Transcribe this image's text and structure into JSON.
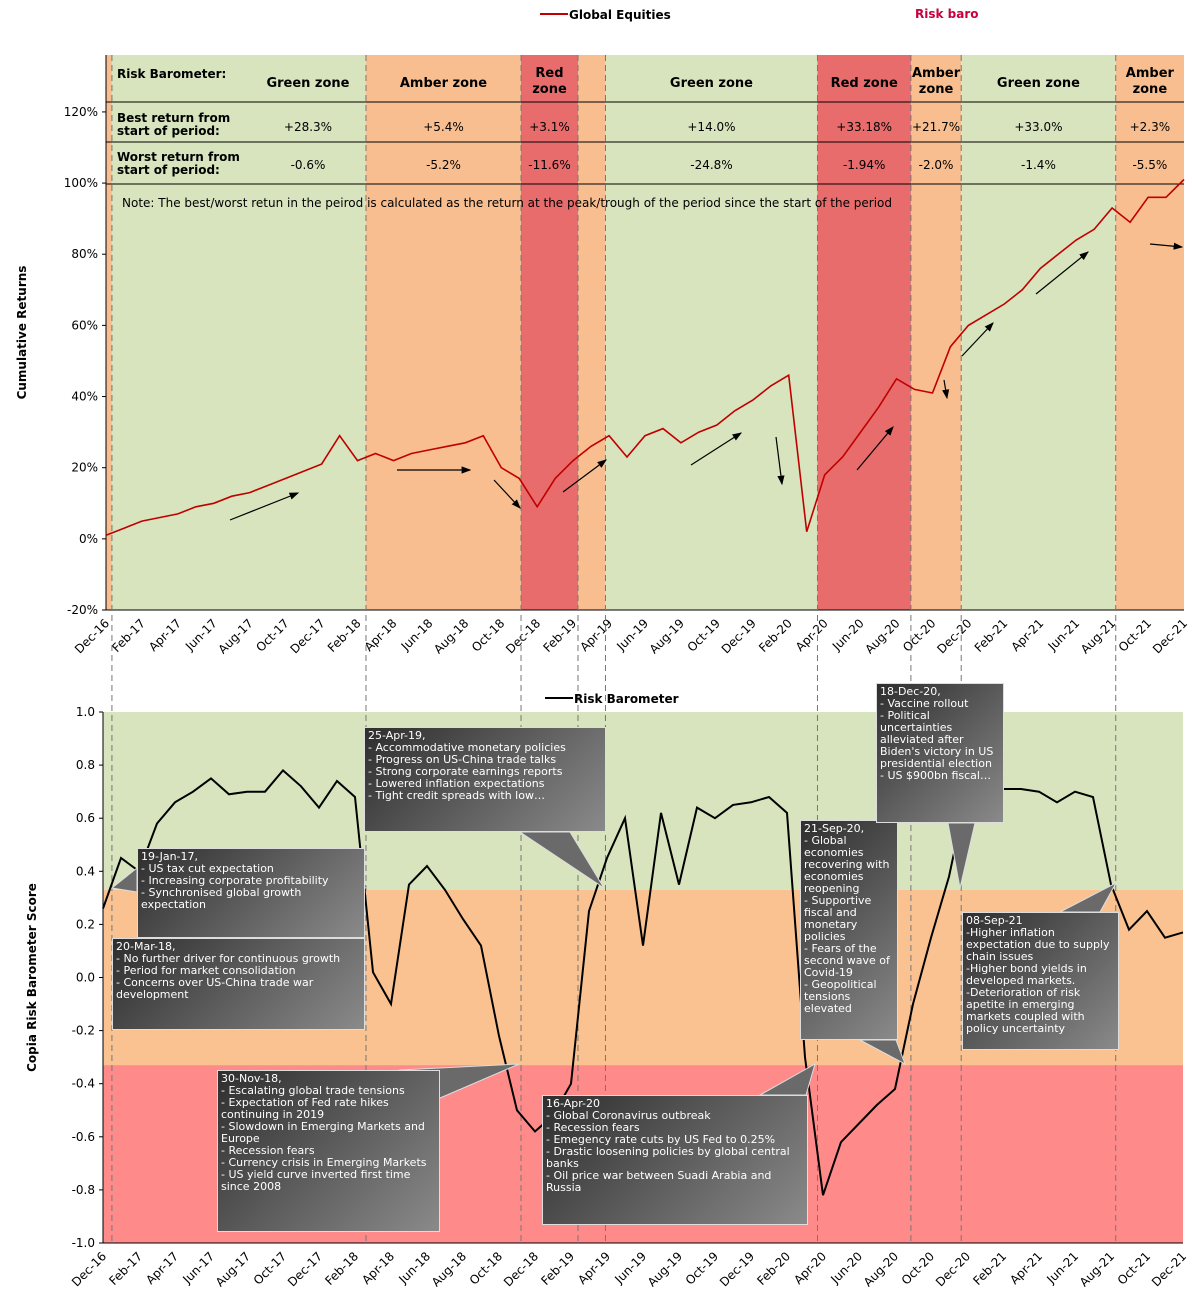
{
  "chart_data": [
    {
      "type": "line",
      "title": "Risk baro",
      "y_label": "Cumulative Returns",
      "categories": [
        "Dec-16",
        null,
        "Feb-17",
        null,
        "Apr-17",
        null,
        "Jun-17",
        null,
        "Aug-17",
        null,
        "Oct-17",
        null,
        "Dec-17",
        null,
        "Feb-18",
        null,
        "Apr-18",
        null,
        "Jun-18",
        null,
        "Aug-18",
        null,
        "Oct-18",
        null,
        "Dec-18",
        null,
        "Feb-19",
        null,
        "Apr-19",
        null,
        "Jun-19",
        null,
        "Aug-19",
        null,
        "Oct-19",
        null,
        "Dec-19",
        null,
        "Feb-20",
        null,
        "Apr-20",
        null,
        "Jun-20",
        null,
        "Aug-20",
        null,
        "Oct-20",
        null,
        "Dec-20",
        null,
        "Feb-21",
        null,
        "Apr-21",
        null,
        "Jun-21",
        null,
        "Aug-21",
        null,
        "Oct-21",
        null,
        "Dec-21"
      ],
      "series": [
        {
          "name": "Global Equities",
          "color": "#c00000",
          "values": [
            1,
            3,
            5,
            6,
            7,
            9,
            10,
            12,
            13,
            15,
            17,
            19,
            21,
            29,
            22,
            24,
            22,
            24,
            25,
            26,
            27,
            29,
            20,
            17,
            9,
            17,
            22,
            26,
            29,
            23,
            29,
            31,
            27,
            30,
            32,
            36,
            39,
            43,
            46,
            2,
            18,
            23,
            30,
            37,
            45,
            42,
            41,
            54,
            60,
            63,
            66,
            70,
            76,
            80,
            84,
            87,
            93,
            89,
            96,
            96,
            101
          ]
        }
      ],
      "ylim": [
        -20,
        136
      ],
      "yticks": [
        {
          "value": -20,
          "label": "-20%"
        },
        {
          "value": 0,
          "label": "0%"
        },
        {
          "value": 20,
          "label": "20%"
        },
        {
          "value": 40,
          "label": "40%"
        },
        {
          "value": 60,
          "label": "60%"
        },
        {
          "value": 80,
          "label": "80%"
        },
        {
          "value": 100,
          "label": "100%"
        },
        {
          "value": 120,
          "label": "120%"
        }
      ],
      "table": {
        "row_labels": [
          "Risk Barometer:",
          "Best return from start of period:",
          "Worst return from start of period:"
        ]
      },
      "zones": [
        {
          "x": [
            0,
            0.33
          ],
          "color": "#f8be8f"
        },
        {
          "x": [
            0.33,
            14.47
          ],
          "color": "#d7e4bd",
          "label": "Green zone",
          "best": "+28.3%",
          "worst": "-0.6%"
        },
        {
          "x": [
            14.47,
            23.1
          ],
          "color": "#f8be8f",
          "label": "Amber zone",
          "best": "+5.4%",
          "worst": "-5.2%"
        },
        {
          "x": [
            23.1,
            26.27
          ],
          "color": "#e86c6c",
          "label": "Red zone",
          "best": "+3.1%",
          "worst": "-11.6%"
        },
        {
          "x": [
            26.27,
            27.8
          ],
          "color": "#f8be8f"
        },
        {
          "x": [
            27.8,
            39.6
          ],
          "color": "#d7e4bd",
          "label": "Green zone",
          "best": "+14.0%",
          "worst": "-24.8%"
        },
        {
          "x": [
            39.6,
            44.8
          ],
          "color": "#e86c6c",
          "label": "Red zone",
          "best": "+33.18%",
          "worst": "-1.94%"
        },
        {
          "x": [
            44.8,
            47.6
          ],
          "color": "#f8be8f",
          "label": "Amber zone",
          "best": "+21.7%",
          "worst": "-2.0%"
        },
        {
          "x": [
            47.6,
            56.2
          ],
          "color": "#d7e4bd",
          "label": "Green zone",
          "best": "+33.0%",
          "worst": "-1.4%"
        },
        {
          "x": [
            56.2,
            60
          ],
          "color": "#f8be8f",
          "label": "Amber zone",
          "best": "+2.3%",
          "worst": "-5.5%"
        }
      ],
      "note": "Note: The best/worst retun in the peirod is calculated as the return at the peak/trough of the period since the start of the period"
    },
    {
      "type": "line",
      "y_label": "Copia Risk Barometer Score",
      "categories": [
        "Dec-16",
        null,
        "Feb-17",
        null,
        "Apr-17",
        null,
        "Jun-17",
        null,
        "Aug-17",
        null,
        "Oct-17",
        null,
        "Dec-17",
        null,
        "Feb-18",
        null,
        "Apr-18",
        null,
        "Jun-18",
        null,
        "Aug-18",
        null,
        "Oct-18",
        null,
        "Dec-18",
        null,
        "Feb-19",
        null,
        "Apr-19",
        null,
        "Jun-19",
        null,
        "Aug-19",
        null,
        "Oct-19",
        null,
        "Dec-19",
        null,
        "Feb-20",
        null,
        "Apr-20",
        null,
        "Jun-20",
        null,
        "Aug-20",
        null,
        "Oct-20",
        null,
        "Dec-20",
        null,
        "Feb-21",
        null,
        "Apr-21",
        null,
        "Jun-21",
        null,
        "Aug-21",
        null,
        "Oct-21",
        null,
        "Dec-21"
      ],
      "series": [
        {
          "name": "Risk Barometer",
          "color": "#000000",
          "values": [
            0.26,
            0.45,
            0.4,
            0.58,
            0.66,
            0.7,
            0.75,
            0.69,
            0.7,
            0.7,
            0.78,
            0.72,
            0.64,
            0.74,
            0.68,
            0.02,
            -0.1,
            0.35,
            0.42,
            0.33,
            0.22,
            0.12,
            -0.22,
            -0.5,
            -0.58,
            -0.52,
            -0.4,
            0.25,
            0.45,
            0.6,
            0.12,
            0.62,
            0.35,
            0.64,
            0.6,
            0.65,
            0.66,
            0.68,
            0.62,
            -0.3,
            -0.82,
            -0.62,
            -0.55,
            -0.48,
            -0.42,
            -0.1,
            0.15,
            0.38,
            0.7,
            0.7,
            0.71,
            0.71,
            0.7,
            0.66,
            0.7,
            0.68,
            0.35,
            0.18,
            0.25,
            0.15,
            0.17
          ]
        }
      ],
      "ylim": [
        -1,
        1
      ],
      "yticks": [
        {
          "value": -1,
          "label": "-1.0"
        },
        -0.8,
        -0.6,
        -0.4,
        -0.2,
        {
          "value": 0,
          "label": "0.0"
        },
        0.2,
        0.4,
        0.6,
        0.8,
        {
          "value": 1,
          "label": "1.0"
        }
      ],
      "bands": [
        {
          "from": 0.33,
          "to": 1,
          "color": "#d7e4bd"
        },
        {
          "from": -0.33,
          "to": 0.33,
          "color": "#f9c290"
        },
        {
          "from": -1,
          "to": -0.33,
          "color": "#ff8a8a"
        }
      ],
      "annotations": [
        {
          "title": "19-Jan-17,",
          "items": [
            "- US tax cut expectation",
            "- Increasing corporate profitability",
            "- Synchronised global growth expectation"
          ]
        },
        {
          "title": "20-Mar-18,",
          "items": [
            "- No further driver for continuous growth",
            "- Period for market consolidation",
            "- Concerns over US-China trade war development"
          ]
        },
        {
          "title": "30-Nov-18,",
          "items": [
            "- Escalating global trade tensions",
            "- Expectation of Fed rate hikes continuing in 2019",
            "- Slowdown in Emerging Markets and Europe",
            "- Recession fears",
            "- Currency crisis in Emerging Markets",
            "- US yield curve inverted first time since 2008"
          ]
        },
        {
          "title": "25-Apr-19,",
          "items": [
            "- Accommodative monetary policies",
            "- Progress on US-China trade talks",
            "- Strong corporate earnings reports",
            "- Lowered inflation expectations",
            "- Tight credit spreads with low…"
          ]
        },
        {
          "title": "16-Apr-20",
          "items": [
            "- Global Coronavirus outbreak",
            "- Recession fears",
            "- Emegency rate cuts by US Fed to 0.25%",
            "- Drastic loosening policies by global central banks",
            "- Oil price war between Suadi Arabia and Russia"
          ]
        },
        {
          "title": "21-Sep-20,",
          "items": [
            "- Global economies recovering with economies reopening",
            "- Supportive fiscal and monetary policies",
            "- Fears of the second wave of Covid-19",
            "- Geopolitical tensions elevated"
          ]
        },
        {
          "title": "18-Dec-20,",
          "items": [
            "- Vaccine rollout",
            "- Political uncertainties alleviated after Biden's victory in US presidential election",
            "- US $900bn fiscal…"
          ]
        },
        {
          "title": "08-Sep-21",
          "items": [
            "-Higher inflation expectation due to supply chain issues",
            "-Higher bond yields in developed markets.",
            "-Deterioration of risk apetite in emerging markets coupled with policy uncertainty"
          ]
        }
      ]
    }
  ]
}
